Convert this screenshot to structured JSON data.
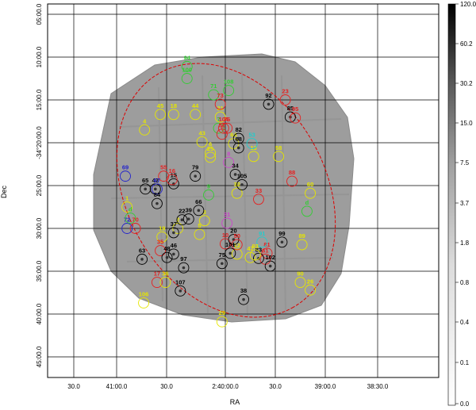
{
  "chart_data": {
    "type": "scatter",
    "title": "",
    "xlabel": "RA",
    "ylabel": "Dec",
    "x_ticks": [
      "30.0",
      "41:00.0",
      "30.0",
      "2:40:00.0",
      "30.0",
      "39:00.0",
      "38:30.0"
    ],
    "y_ticks": [
      "05:00.0",
      "10:00.0",
      "15:00.0",
      "-34°20:00.0",
      "25:00.0",
      "30:00.0",
      "35:00.0",
      "40:00.0",
      "45:00.0"
    ],
    "grid": true,
    "colorbar": {
      "ticks": [
        "120.0",
        "60.2",
        "30.2",
        "15.0",
        "7.5",
        "3.7",
        "1.8",
        "0.8",
        "0.4",
        "0.1",
        "0.0"
      ],
      "scale": "log",
      "colormap": "grayscale"
    },
    "colors": {
      "yellow": "#e6e600",
      "red": "#e52020",
      "black": "#000000",
      "green": "#33cc33",
      "blue": "#2222cc",
      "magenta": "#cc44cc",
      "cyan": "#22cccc",
      "region": "#dd0000"
    },
    "sources": [
      {
        "id": "1",
        "color": "yellow",
        "ra": 40.983,
        "dec": 27.5
      },
      {
        "id": "2",
        "color": "yellow",
        "ra": 40.475,
        "dec": 30.0
      },
      {
        "id": "3",
        "color": "yellow",
        "ra": 40.208,
        "dec": 29.1
      },
      {
        "id": "4",
        "color": "yellow",
        "ra": 40.808,
        "dec": 18.5
      },
      {
        "id": "5",
        "color": "yellow",
        "ra": 40.258,
        "dec": 30.7
      },
      {
        "id": "6",
        "color": "yellow",
        "ra": 40.15,
        "dec": 21.2
      },
      {
        "id": "7",
        "color": "green",
        "ra": 40.067,
        "dec": 18.3
      },
      {
        "id": "8",
        "color": "magenta",
        "ra": 39.967,
        "dec": 22.3
      },
      {
        "id": "9",
        "color": "green",
        "ra": 40.167,
        "dec": 26.1
      },
      {
        "id": "10",
        "color": "red",
        "ra": 40.0,
        "dec": 31.8
      },
      {
        "id": "12",
        "color": "yellow",
        "ra": 39.883,
        "dec": 33.0
      },
      {
        "id": "13",
        "color": "yellow",
        "ra": 39.717,
        "dec": 21.6
      },
      {
        "id": "15",
        "color": "black",
        "ra": 40.517,
        "dec": 24.8
      },
      {
        "id": "16",
        "color": "red",
        "ra": 40.533,
        "dec": 24.3
      },
      {
        "id": "17",
        "color": "red",
        "ra": 40.683,
        "dec": 36.3
      },
      {
        "id": "18",
        "color": "yellow",
        "ra": 40.517,
        "dec": 16.7
      },
      {
        "id": "19",
        "color": "yellow",
        "ra": 40.633,
        "dec": 31.0
      },
      {
        "id": "20",
        "color": "black",
        "ra": 39.917,
        "dec": 31.3
      },
      {
        "id": "21",
        "color": "yellow",
        "ra": 40.05,
        "dec": 17.0
      },
      {
        "id": "22",
        "color": "black",
        "ra": 40.433,
        "dec": 29.0
      },
      {
        "id": "23",
        "color": "red",
        "ra": 39.4,
        "dec": 15.0
      },
      {
        "id": "25",
        "color": "yellow",
        "ra": 40.15,
        "dec": 21.7
      },
      {
        "id": "26",
        "color": "yellow",
        "ra": 39.15,
        "dec": 37.2
      },
      {
        "id": "29",
        "color": "yellow",
        "ra": 40.033,
        "dec": 40.9
      },
      {
        "id": "31",
        "color": "magenta",
        "ra": 39.983,
        "dec": 29.4
      },
      {
        "id": "32",
        "color": "yellow",
        "ra": 39.883,
        "dec": 25.9
      },
      {
        "id": "33",
        "color": "red",
        "ra": 39.667,
        "dec": 26.6
      },
      {
        "id": "34",
        "color": "black",
        "ra": 39.9,
        "dec": 23.7
      },
      {
        "id": "35",
        "color": "red",
        "ra": 40.65,
        "dec": 32.6
      },
      {
        "id": "36",
        "color": "yellow",
        "ra": 40.6,
        "dec": 36.3
      },
      {
        "id": "37",
        "color": "black",
        "ra": 40.517,
        "dec": 30.5
      },
      {
        "id": "38",
        "color": "black",
        "ra": 39.817,
        "dec": 38.3
      },
      {
        "id": "39",
        "color": "black",
        "ra": 40.367,
        "dec": 28.9
      },
      {
        "id": "42",
        "color": "black",
        "ra": 40.7,
        "dec": 25.4
      },
      {
        "id": "43",
        "color": "yellow",
        "ra": 40.233,
        "dec": 19.9
      },
      {
        "id": "44",
        "color": "yellow",
        "ra": 40.3,
        "dec": 16.7
      },
      {
        "id": "45",
        "color": "yellow",
        "ra": 40.65,
        "dec": 16.7
      },
      {
        "id": "46",
        "color": "black",
        "ra": 40.517,
        "dec": 33.0
      },
      {
        "id": "47",
        "color": "yellow",
        "ra": 39.75,
        "dec": 33.4
      },
      {
        "id": "48",
        "color": "black",
        "ra": 40.583,
        "dec": 33.4
      },
      {
        "id": "50",
        "color": "red",
        "ra": 39.883,
        "dec": 31.9
      },
      {
        "id": "51",
        "color": "red",
        "ra": 40.033,
        "dec": 19.0
      },
      {
        "id": "53",
        "color": "cyan",
        "ra": 39.733,
        "dec": 20.1
      },
      {
        "id": "55",
        "color": "red",
        "ra": 40.617,
        "dec": 23.9
      },
      {
        "id": "58",
        "color": "yellow",
        "ra": 39.467,
        "dec": 21.6
      },
      {
        "id": "60",
        "color": "yellow",
        "ra": 39.15,
        "dec": 25.9
      },
      {
        "id": "61",
        "color": "red",
        "ra": 39.6,
        "dec": 33.6
      },
      {
        "id": "63",
        "color": "black",
        "ra": 40.833,
        "dec": 33.6
      },
      {
        "id": "64",
        "color": "yellow",
        "ra": 39.917,
        "dec": 20.1
      },
      {
        "id": "65",
        "color": "black",
        "ra": 40.8,
        "dec": 25.4
      },
      {
        "id": "66",
        "color": "black",
        "ra": 40.267,
        "dec": 27.9
      },
      {
        "id": "67",
        "color": "blue",
        "ra": 40.683,
        "dec": 25.4
      },
      {
        "id": "68",
        "color": "black",
        "ra": 39.867,
        "dec": 20.6
      },
      {
        "id": "69",
        "color": "blue",
        "ra": 41.0,
        "dec": 23.9
      },
      {
        "id": "70",
        "color": "red",
        "ra": 40.9,
        "dec": 30.0
      },
      {
        "id": "71",
        "color": "green",
        "ra": 40.117,
        "dec": 14.4
      },
      {
        "id": "72",
        "color": "blue",
        "ra": 40.983,
        "dec": 30.0
      },
      {
        "id": "73",
        "color": "red",
        "ra": 40.05,
        "dec": 15.5
      },
      {
        "id": "75",
        "color": "black",
        "ra": 40.033,
        "dec": 34.1
      },
      {
        "id": "76",
        "color": "red",
        "ra": 39.983,
        "dec": 18.3
      },
      {
        "id": "79",
        "color": "black",
        "ra": 40.3,
        "dec": 23.9
      },
      {
        "id": "81",
        "color": "red",
        "ra": 39.583,
        "dec": 32.9
      },
      {
        "id": "82",
        "color": "black",
        "ra": 39.867,
        "dec": 19.5
      },
      {
        "id": "83",
        "color": "black",
        "ra": 39.667,
        "dec": 33.5
      },
      {
        "id": "84",
        "color": "black",
        "ra": 40.683,
        "dec": 27.1
      },
      {
        "id": "85",
        "color": "black",
        "ra": 39.35,
        "dec": 17.0
      },
      {
        "id": "88",
        "color": "red",
        "ra": 39.333,
        "dec": 24.5
      },
      {
        "id": "89",
        "color": "yellow",
        "ra": 39.233,
        "dec": 31.9
      },
      {
        "id": "90",
        "color": "yellow",
        "ra": 39.25,
        "dec": 36.3
      },
      {
        "id": "91",
        "color": "cyan",
        "ra": 39.633,
        "dec": 31.6
      },
      {
        "id": "92",
        "color": "black",
        "ra": 39.567,
        "dec": 15.5
      },
      {
        "id": "93",
        "color": "yellow",
        "ra": 39.7,
        "dec": 33.1
      },
      {
        "id": "94",
        "color": "green",
        "ra": 40.383,
        "dec": 11.1
      },
      {
        "id": "95",
        "color": "red",
        "ra": 39.3,
        "dec": 17.1
      },
      {
        "id": "97",
        "color": "black",
        "ra": 40.417,
        "dec": 34.6
      },
      {
        "id": "99",
        "color": "black",
        "ra": 39.433,
        "dec": 31.6
      },
      {
        "id": "100",
        "color": "green",
        "ra": 40.383,
        "dec": 12.5
      },
      {
        "id": "101",
        "color": "black",
        "ra": 39.95,
        "dec": 32.9
      },
      {
        "id": "102",
        "color": "black",
        "ra": 39.55,
        "dec": 34.4
      },
      {
        "id": "104",
        "color": "red",
        "ra": 40.017,
        "dec": 18.3
      },
      {
        "id": "105",
        "color": "black",
        "ra": 39.833,
        "dec": 24.9
      },
      {
        "id": "106",
        "color": "yellow",
        "ra": 40.817,
        "dec": 38.7
      },
      {
        "id": "107",
        "color": "black",
        "ra": 40.45,
        "dec": 37.3
      },
      {
        "id": "108",
        "color": "green",
        "ra": 39.967,
        "dec": 13.9
      },
      {
        "id": "d",
        "color": "green",
        "ra": 40.95,
        "dec": 28.8
      },
      {
        "id": "d",
        "color": "green",
        "ra": 39.183,
        "dec": 28.0
      }
    ]
  }
}
